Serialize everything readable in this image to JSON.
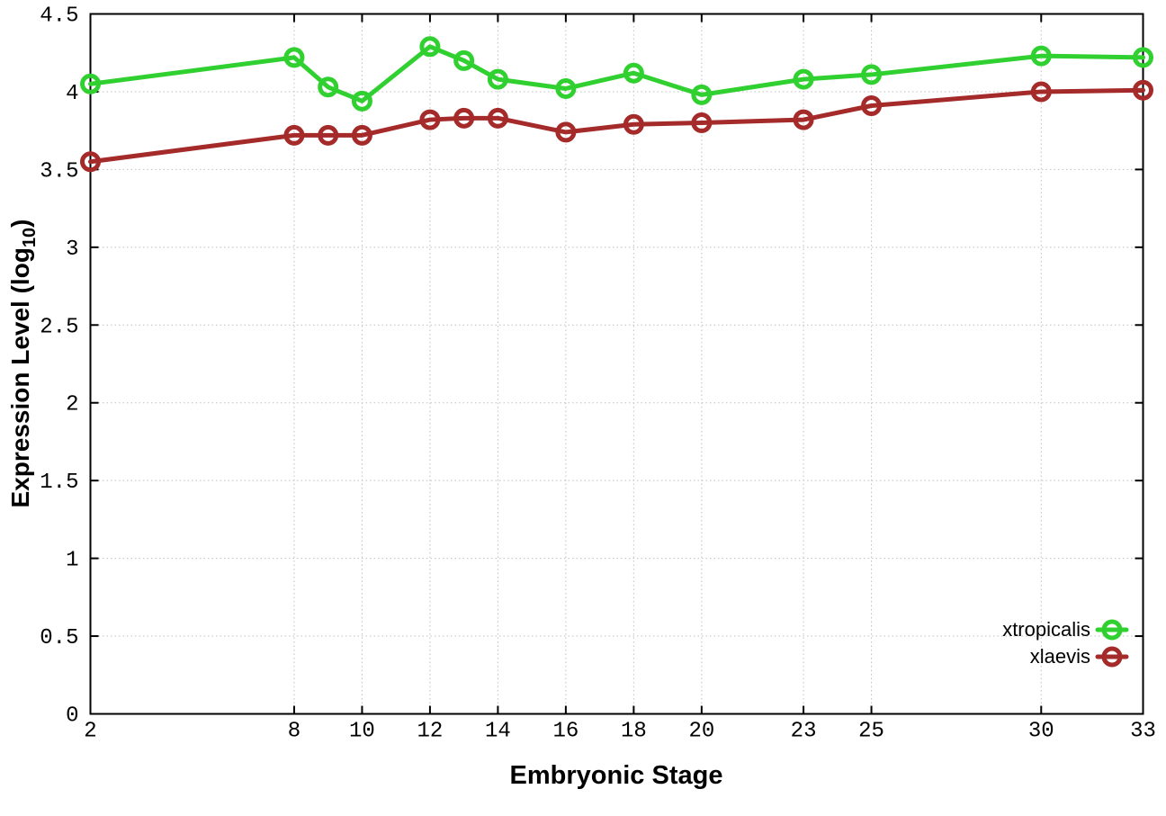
{
  "figure": {
    "background_color": "#ffffff"
  },
  "chart_data": {
    "type": "line",
    "title": "",
    "xlabel": "Embryonic Stage",
    "ylabel": "Expression Level (log10)",
    "ylabel_parts": {
      "main": "Expression Level (log",
      "sub": "10",
      "end": ")"
    },
    "x": [
      2,
      8,
      9,
      10,
      12,
      13,
      14,
      16,
      18,
      20,
      23,
      25,
      30,
      33
    ],
    "series": [
      {
        "name": "xtropicalis",
        "color": "#30d030",
        "values": [
          4.05,
          4.22,
          4.03,
          3.94,
          4.29,
          4.2,
          4.08,
          4.02,
          4.12,
          3.98,
          4.08,
          4.11,
          4.23,
          4.22
        ]
      },
      {
        "name": "xlaevis",
        "color": "#a52a2a",
        "values": [
          3.55,
          3.72,
          3.72,
          3.72,
          3.82,
          3.83,
          3.83,
          3.74,
          3.79,
          3.8,
          3.82,
          3.91,
          4.0,
          4.01
        ]
      }
    ],
    "xlim": [
      2,
      33
    ],
    "ylim": [
      0,
      4.5
    ],
    "xticks": [
      2,
      8,
      10,
      12,
      14,
      16,
      18,
      20,
      23,
      25,
      30,
      33
    ],
    "xtick_labels": [
      "2",
      "8",
      "10",
      "12",
      "14",
      "16",
      "18",
      "20",
      "23",
      "25",
      "30",
      "33"
    ],
    "yticks": [
      0,
      0.5,
      1,
      1.5,
      2,
      2.5,
      3,
      3.5,
      4,
      4.5
    ],
    "ytick_labels": [
      "0",
      "0.5",
      "1",
      "1.5",
      "2",
      "2.5",
      "3",
      "3.5",
      "4",
      "4.5"
    ],
    "grid": true,
    "grid_color": "#c0c0c0",
    "axis_color": "#000000",
    "marker": "open-circle",
    "legend_position": "inside-bottom-right"
  }
}
